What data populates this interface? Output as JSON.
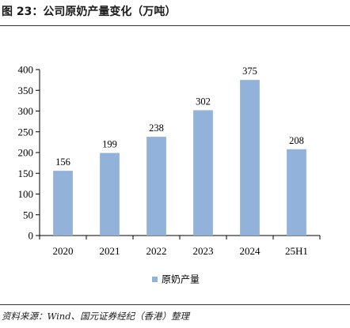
{
  "figure": {
    "title": "图 23：公司原奶产量变化（万吨）",
    "source": "资料来源：Wind、国元证券经纪（香港）整理"
  },
  "chart_data": {
    "type": "bar",
    "categories": [
      "2020",
      "2021",
      "2022",
      "2023",
      "2024",
      "25H1"
    ],
    "series": [
      {
        "name": "原奶产量",
        "values": [
          156,
          199,
          238,
          302,
          375,
          208
        ],
        "color": "#93b2d9"
      }
    ],
    "ylim": [
      0,
      400
    ],
    "yticks": [
      0,
      50,
      100,
      150,
      200,
      250,
      300,
      350,
      400
    ],
    "data_labels": true,
    "grid": false,
    "legend_position": "bottom-center"
  }
}
